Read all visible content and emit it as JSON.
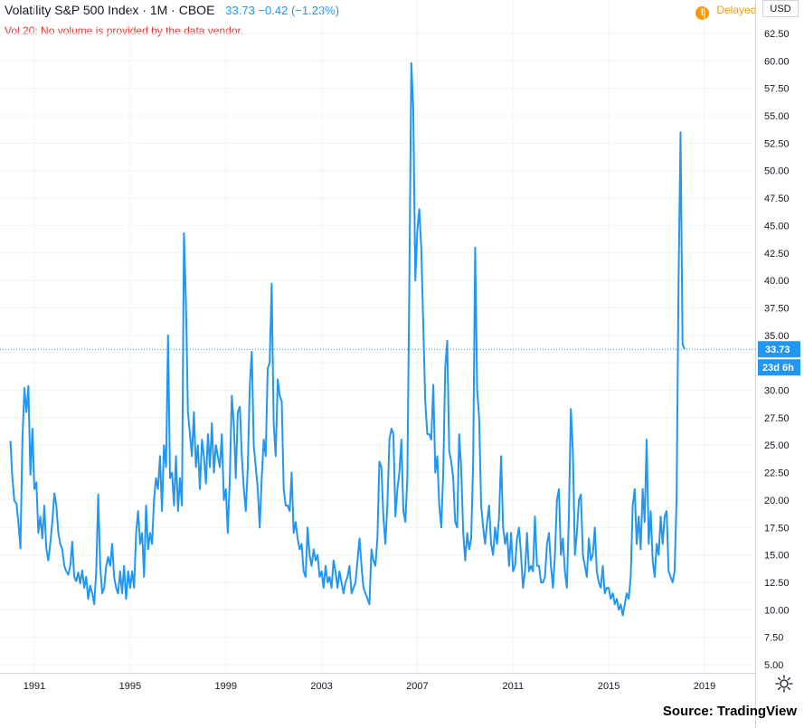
{
  "header": {
    "symbol": "Volatility S&P 500 Index · 1M · CBOE",
    "value_text": "33.73  −0.42 (−1.23%)",
    "vol_note": "Vol 20: No volume is provided by the data vendor.",
    "delayed_label": "Delayed",
    "delayed_icon": "!",
    "currency": "USD"
  },
  "price_label": {
    "value": "33.73",
    "countdown": "23d 6h"
  },
  "source": "Source: TradingView",
  "colors": {
    "line": "#2196f3",
    "label_bg": "#2196f3",
    "delayed": "#ff9800",
    "vol_note": "#e53935"
  },
  "icons": {
    "settings": "gear-icon",
    "delayed": "info-icon"
  },
  "chart_data": {
    "type": "line",
    "title": "Volatility S&P 500 Index",
    "interval": "1M",
    "exchange": "CBOE",
    "x_ticks": [
      "1991",
      "1995",
      "1999",
      "2003",
      "2007",
      "2011",
      "2015",
      "2019"
    ],
    "y_ticks": [
      "5.00",
      "7.50",
      "10.00",
      "12.50",
      "15.00",
      "17.50",
      "20.00",
      "22.50",
      "25.00",
      "27.50",
      "30.00",
      "32.50",
      "35.00",
      "37.50",
      "40.00",
      "42.50",
      "45.00",
      "47.50",
      "50.00",
      "52.50",
      "55.00",
      "57.50",
      "60.00",
      "62.50"
    ],
    "ylim": [
      5,
      63
    ],
    "grid": true,
    "last_value": 33.73,
    "series": [
      {
        "x_start": "1990-01",
        "step": "1 month",
        "values": [
          25.4,
          22.0,
          19.9,
          19.7,
          17.9,
          15.6,
          25.5,
          30.2,
          28.0,
          30.4,
          22.3,
          26.5,
          21.0,
          21.6,
          17.0,
          18.5,
          16.5,
          19.5,
          15.6,
          14.5,
          16.0,
          18.0,
          20.6,
          19.5,
          17.0,
          16.0,
          15.5,
          14.0,
          13.5,
          13.2,
          14.0,
          16.2,
          13.0,
          12.6,
          13.4,
          12.4,
          13.6,
          12.0,
          13.0,
          11.0,
          12.2,
          11.5,
          10.5,
          13.5,
          20.5,
          14.0,
          11.5,
          12.0,
          14.0,
          14.8,
          14.0,
          16.0,
          13.0,
          12.0,
          11.5,
          13.5,
          11.5,
          14.0,
          11.0,
          13.5,
          12.0,
          13.5,
          12.0,
          17.0,
          19.0,
          16.0,
          17.0,
          13.0,
          19.5,
          15.5,
          17.0,
          16.0,
          20.0,
          22.0,
          21.0,
          24.0,
          19.0,
          25.0,
          23.0,
          35.0,
          22.0,
          22.5,
          19.5,
          24.0,
          19.0,
          22.0,
          19.5,
          44.3,
          38.0,
          28.0,
          26.0,
          24.0,
          28.0,
          23.0,
          25.0,
          21.0,
          25.5,
          24.0,
          21.5,
          26.0,
          23.0,
          27.0,
          22.5,
          25.0,
          24.0,
          23.0,
          26.0,
          20.0,
          21.0,
          17.0,
          22.0,
          29.5,
          27.0,
          22.0,
          28.0,
          28.5,
          24.0,
          21.0,
          19.0,
          23.0,
          30.5,
          33.5,
          25.0,
          23.0,
          21.0,
          17.5,
          22.0,
          25.5,
          24.0,
          32.0,
          32.5,
          39.7,
          27.0,
          24.0,
          31.0,
          29.5,
          29.0,
          21.0,
          19.5,
          19.5,
          19.0,
          22.5,
          17.0,
          18.0,
          16.5,
          15.5,
          16.0,
          13.5,
          13.0,
          17.5,
          15.0,
          14.0,
          15.5,
          14.5,
          15.0,
          13.0,
          13.5,
          12.0,
          14.0,
          12.5,
          13.0,
          12.0,
          14.5,
          13.5,
          12.0,
          13.5,
          12.5,
          11.5,
          12.5,
          13.0,
          14.0,
          11.5,
          12.0,
          12.5,
          14.5,
          16.5,
          14.0,
          12.0,
          11.5,
          11.0,
          10.5,
          15.5,
          14.5,
          14.0,
          16.5,
          23.5,
          23.0,
          18.5,
          16.0,
          19.5,
          25.5,
          26.5,
          26.0,
          18.5,
          21.0,
          22.5,
          25.5,
          19.0,
          18.0,
          22.0,
          39.5,
          59.8,
          55.5,
          40.0,
          44.5,
          46.5,
          43.0,
          36.0,
          29.0,
          26.0,
          26.0,
          25.5,
          30.5,
          22.5,
          24.0,
          19.5,
          17.5,
          22.5,
          32.0,
          34.5,
          24.5,
          23.5,
          22.0,
          18.0,
          17.5,
          26.0,
          23.0,
          17.0,
          14.5,
          17.0,
          15.5,
          16.5,
          23.5,
          43.0,
          30.0,
          27.5,
          19.5,
          17.5,
          16.0,
          18.0,
          19.5,
          16.0,
          15.0,
          17.5,
          16.0,
          18.5,
          24.0,
          17.5,
          16.0,
          17.0,
          14.0,
          17.0,
          13.5,
          14.0,
          16.5,
          17.5,
          15.0,
          12.0,
          13.5,
          17.0,
          13.5,
          14.0,
          13.5,
          18.5,
          14.0,
          14.0,
          12.5,
          12.5,
          13.0,
          16.0,
          17.0,
          14.0,
          12.0,
          15.0,
          20.0,
          21.0,
          15.0,
          16.5,
          13.5,
          12.0,
          18.5,
          28.3,
          24.5,
          15.0,
          17.0,
          20.0,
          20.5,
          15.0,
          14.0,
          13.0,
          16.5,
          14.5,
          15.0,
          17.5,
          13.5,
          12.5,
          12.0,
          14.0,
          11.5,
          12.0,
          12.0,
          11.0,
          11.5,
          10.5,
          11.0,
          10.0,
          10.5,
          9.5,
          10.5,
          11.5,
          11.0,
          13.0,
          19.5,
          21.0,
          16.0,
          18.5,
          15.5,
          21.0,
          18.0,
          25.5,
          16.0,
          19.0,
          14.5,
          13.0,
          16.0,
          15.0,
          18.5,
          16.0,
          18.5,
          19.0,
          13.5,
          13.0,
          12.5,
          13.5,
          20.0,
          40.0,
          53.5,
          34.2,
          33.73
        ]
      }
    ]
  }
}
